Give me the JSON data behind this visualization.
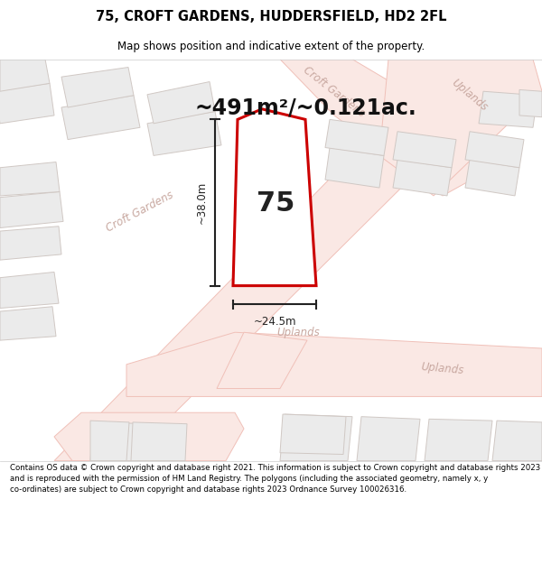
{
  "title_line1": "75, CROFT GARDENS, HUDDERSFIELD, HD2 2FL",
  "title_line2": "Map shows position and indicative extent of the property.",
  "area_text": "~491m²/~0.121ac.",
  "property_number": "75",
  "dim_horizontal": "~24.5m",
  "dim_vertical": "~38.0m",
  "footer_text": "Contains OS data © Crown copyright and database right 2021. This information is subject to Crown copyright and database rights 2023 and is reproduced with the permission of HM Land Registry. The polygons (including the associated geometry, namely x, y co-ordinates) are subject to Crown copyright and database rights 2023 Ordnance Survey 100026316.",
  "map_bg": "#ffffff",
  "road_line_color": "#f0c0b8",
  "road_fill_color": "#fae8e4",
  "property_outline_color": "#cc0000",
  "property_fill_color": "#ffffff",
  "building_fill": "#ebebeb",
  "building_edge": "#d0c8c4",
  "title_bg": "#ffffff",
  "footer_bg": "#ffffff",
  "street_label_color": "#c8a8a0",
  "dim_color": "#222222",
  "area_text_color": "#111111"
}
